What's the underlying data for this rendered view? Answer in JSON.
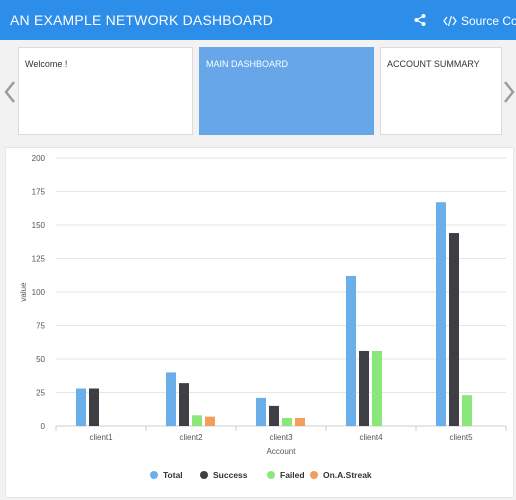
{
  "header": {
    "title": "AN EXAMPLE NETWORK DASHBOARD",
    "source_label": "Source Code",
    "icons": {
      "share": "share-icon",
      "code": "code-icon"
    },
    "color": "#2d8eea"
  },
  "carousel": {
    "cards": [
      {
        "label": "Welcome !",
        "active": false
      },
      {
        "label": "MAIN DASHBOARD",
        "active": true
      },
      {
        "label": "ACCOUNT SUMMARY",
        "active": false
      }
    ],
    "icons": {
      "prev": "chevron-left-icon",
      "next": "chevron-right-icon"
    },
    "active_color": "#66a6e9"
  },
  "chart_data": {
    "type": "bar",
    "title": "",
    "xlabel": "Account",
    "ylabel": "value",
    "ylim": [
      0,
      200
    ],
    "yticks": [
      0,
      25,
      50,
      75,
      100,
      125,
      150,
      175,
      200
    ],
    "grid": true,
    "legend_position": "bottom",
    "categories": [
      "client1",
      "client2",
      "client3",
      "client4",
      "client5"
    ],
    "series": [
      {
        "name": "Total",
        "color": "#6aaeea",
        "values": [
          28,
          40,
          21,
          112,
          167
        ]
      },
      {
        "name": "Success",
        "color": "#3d3f44",
        "values": [
          28,
          32,
          15,
          56,
          144
        ]
      },
      {
        "name": "Failed",
        "color": "#8ae87a",
        "values": [
          0,
          8,
          6,
          56,
          23
        ]
      },
      {
        "name": "On.A.Streak",
        "color": "#f29e5c",
        "values": [
          0,
          7,
          6,
          0,
          0
        ]
      }
    ]
  }
}
